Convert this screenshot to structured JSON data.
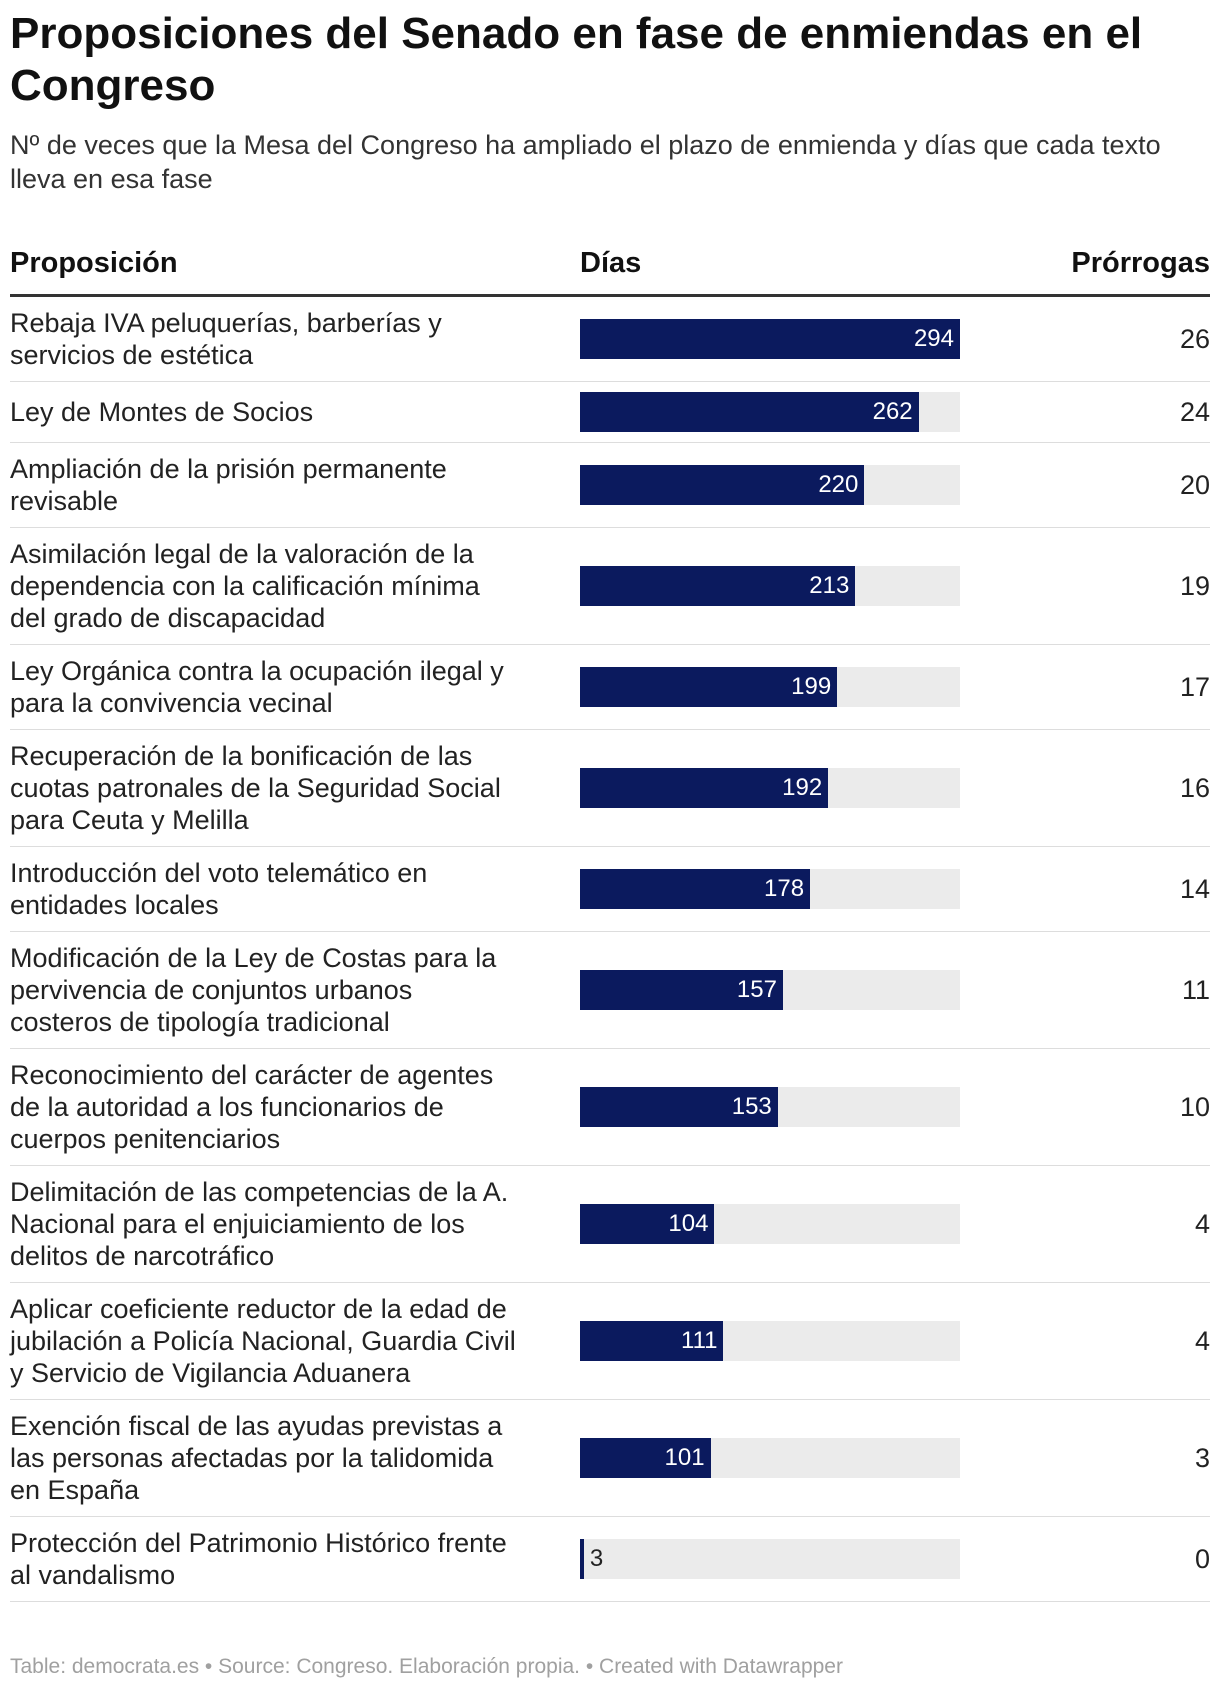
{
  "title": "Proposiciones del Senado en fase de enmiendas en el Congreso",
  "subtitle": "Nº de veces que la Mesa del Congreso ha ampliado el plazo de enmienda y días que cada texto lleva en esa fase",
  "columns": {
    "proposicion": "Proposición",
    "dias": "Días",
    "prorrogas": "Prórrogas"
  },
  "footer": "Table: democrata.es • Source: Congreso. Elaboración propia. • Created with Datawrapper",
  "colors": {
    "bar": "#0b1a5e",
    "track": "#ebebeb"
  },
  "chart_data": {
    "type": "table",
    "title": "Proposiciones del Senado en fase de enmiendas en el Congreso",
    "bar_column": "Días",
    "bar_max": 294,
    "rows": [
      {
        "proposicion": "Rebaja IVA peluquerías, barberías y servicios de estética",
        "dias": 294,
        "prorrogas": 26
      },
      {
        "proposicion": "Ley de Montes de Socios",
        "dias": 262,
        "prorrogas": 24
      },
      {
        "proposicion": "Ampliación de la prisión permanente revisable",
        "dias": 220,
        "prorrogas": 20
      },
      {
        "proposicion": "Asimilación legal de la valoración de la dependencia con la calificación mínima del grado de discapacidad",
        "dias": 213,
        "prorrogas": 19
      },
      {
        "proposicion": "Ley Orgánica contra la ocupación ilegal y para la convivencia vecinal",
        "dias": 199,
        "prorrogas": 17
      },
      {
        "proposicion": "Recuperación de la bonificación de las cuotas patronales de la Seguridad Social para Ceuta y Melilla",
        "dias": 192,
        "prorrogas": 16
      },
      {
        "proposicion": "Introducción del voto telemático en entidades locales",
        "dias": 178,
        "prorrogas": 14
      },
      {
        "proposicion": "Modificación de la Ley de Costas para la pervivencia de conjuntos urbanos costeros de tipología tradicional",
        "dias": 157,
        "prorrogas": 11
      },
      {
        "proposicion": "Reconocimiento del carácter de agentes de la autoridad a los funcionarios de cuerpos penitenciarios",
        "dias": 153,
        "prorrogas": 10
      },
      {
        "proposicion": "Delimitación de las competencias de la A. Nacional para el enjuiciamiento de los delitos de narcotráfico",
        "dias": 104,
        "prorrogas": 4
      },
      {
        "proposicion": "Aplicar coeficiente reductor de la edad de jubilación a Policía Nacional, Guardia Civil y Servicio de Vigilancia Aduanera",
        "dias": 111,
        "prorrogas": 4
      },
      {
        "proposicion": "Exención fiscal de las ayudas previstas a las personas afectadas por la talidomida en España",
        "dias": 101,
        "prorrogas": 3
      },
      {
        "proposicion": "Protección del Patrimonio Histórico frente al vandalismo",
        "dias": 3,
        "prorrogas": 0
      }
    ]
  }
}
